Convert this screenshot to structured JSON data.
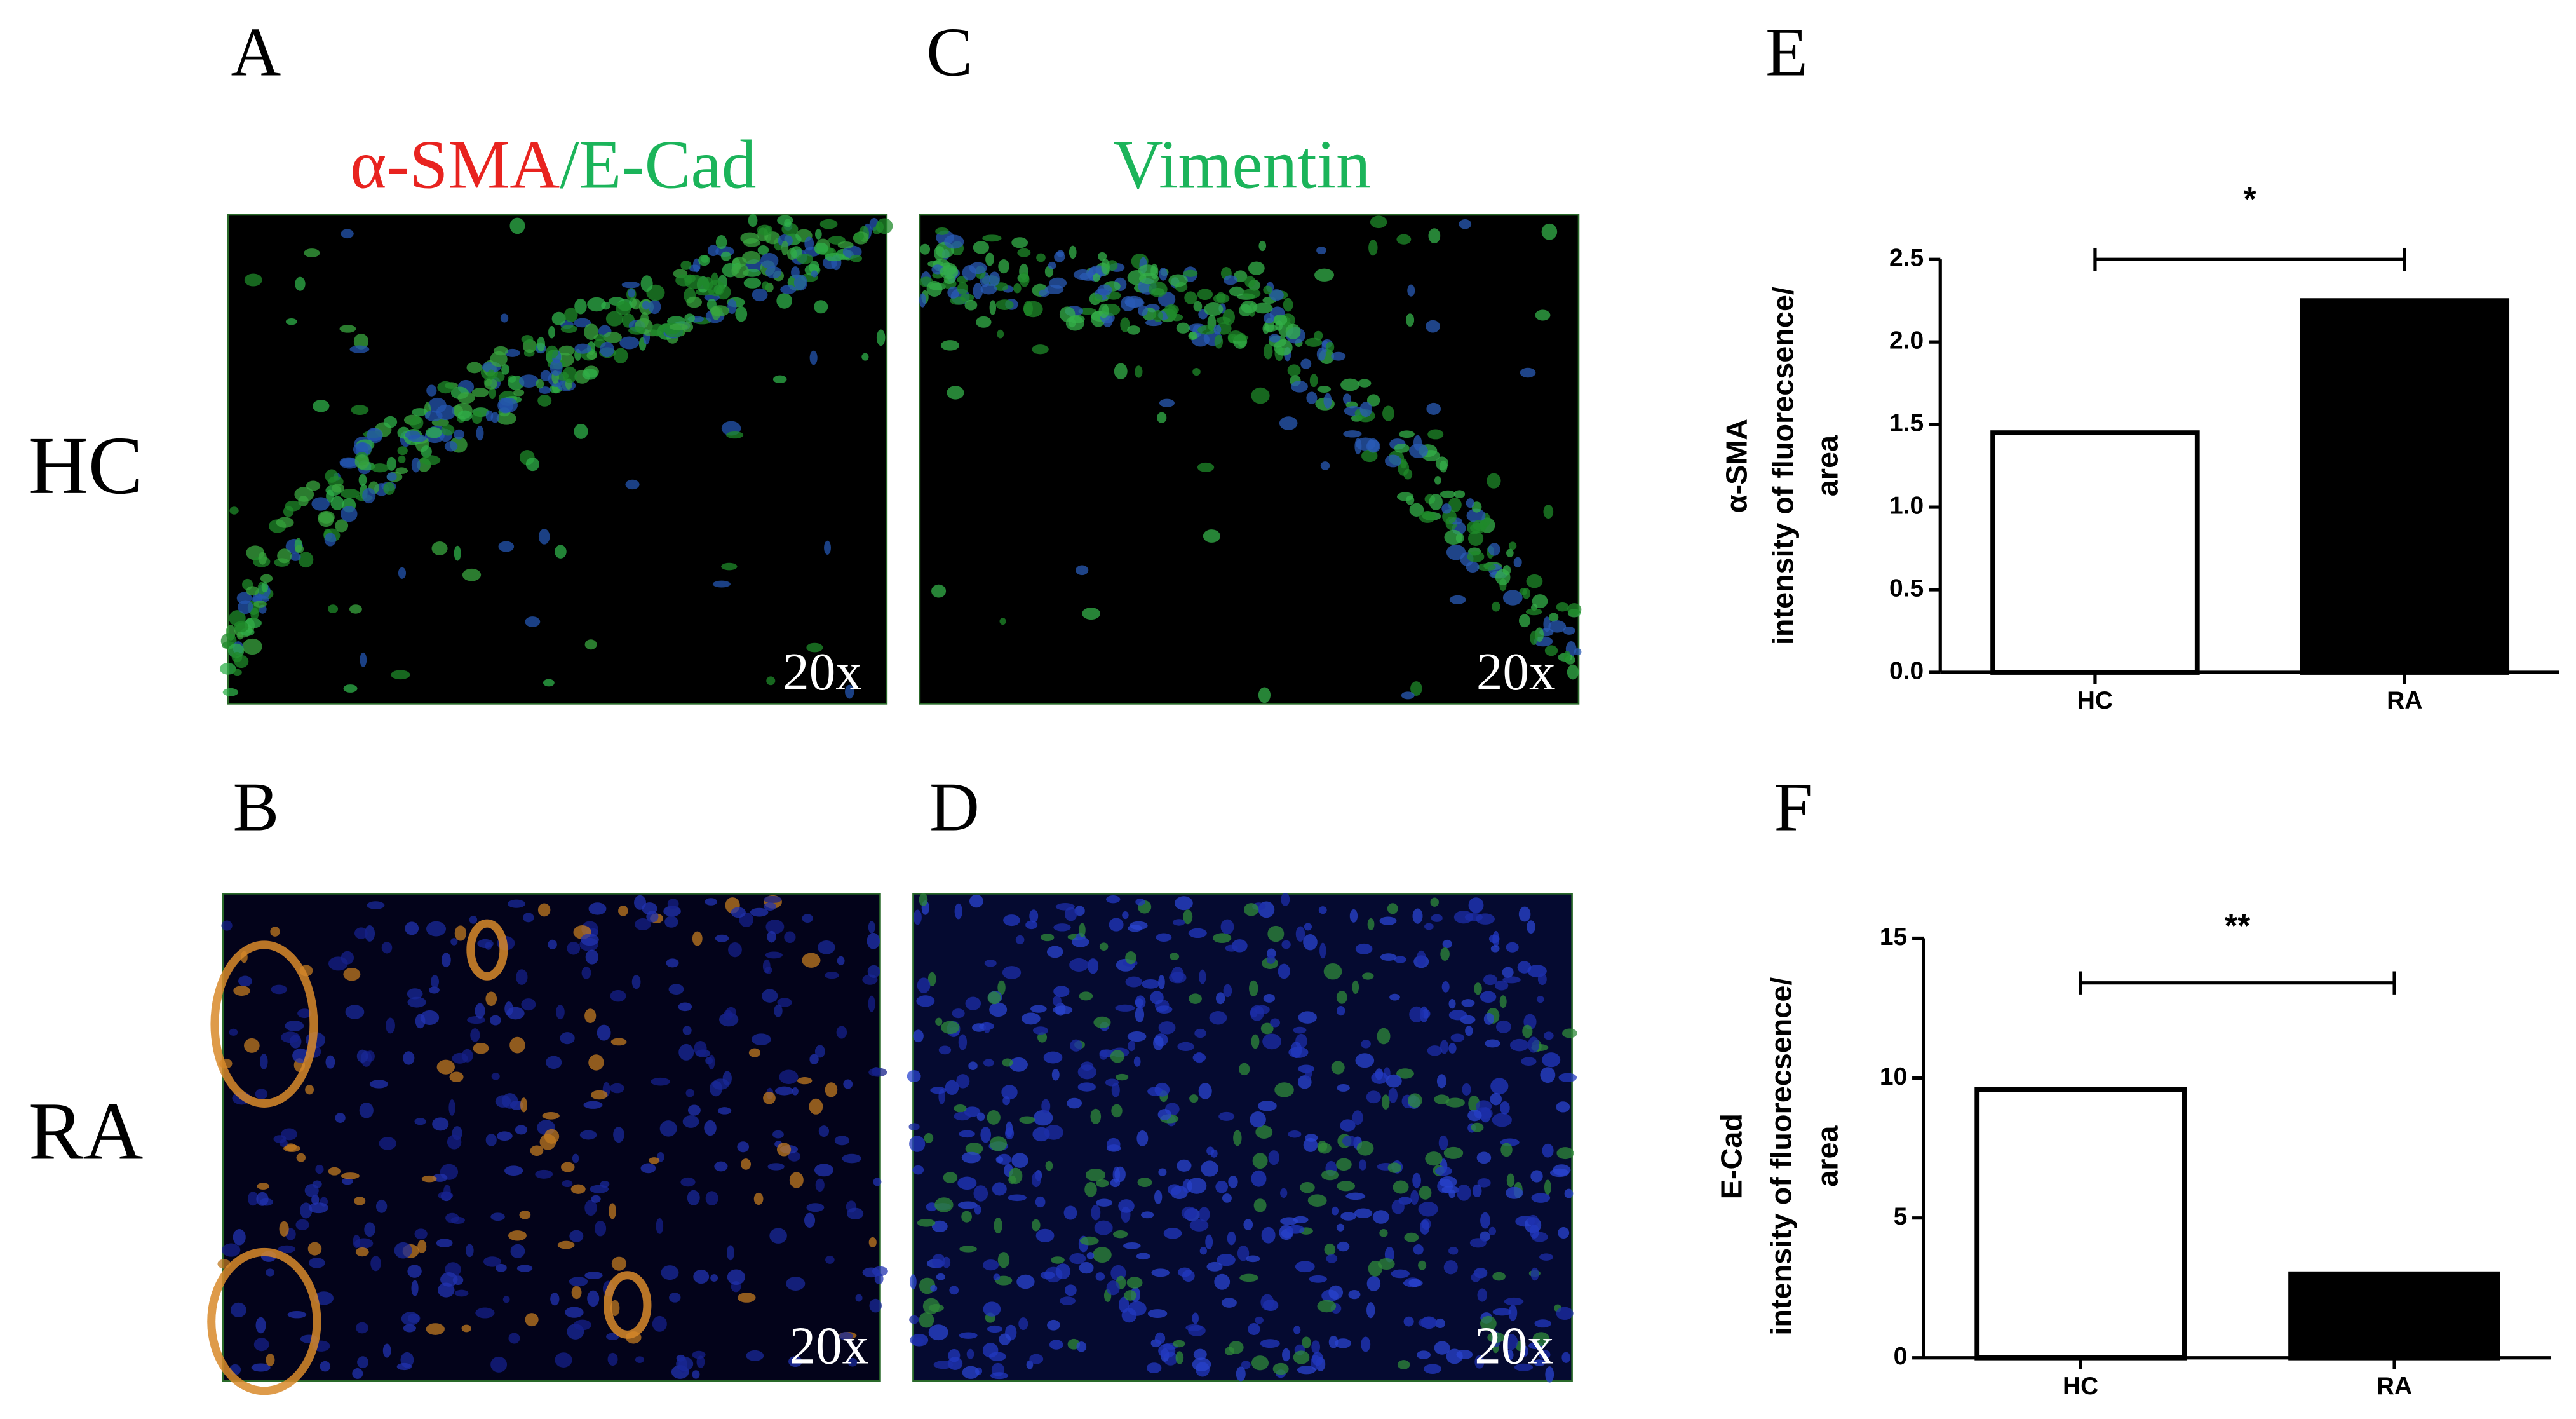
{
  "letters": [
    "A",
    "C",
    "E",
    "B",
    "D",
    "F"
  ],
  "rows": [
    "HC",
    "RA"
  ],
  "stain_a": [
    "α-SMA",
    "/",
    "E-Cad"
  ],
  "stain_c": "Vimentin",
  "magnification": [
    "20x",
    "20x",
    "20x",
    "20x"
  ],
  "chart_data": [
    {
      "type": "bar",
      "y_label": [
        "α-SMA",
        "intensity of fluorecsence/",
        "area"
      ],
      "categories": [
        "HC",
        "RA"
      ],
      "values": [
        1.45,
        2.25
      ],
      "colors": [
        "#ffffff",
        "#000000"
      ],
      "ylim": [
        0,
        2.5
      ],
      "yticks": [
        {
          "value": 0,
          "label": "0.0"
        },
        0.5,
        {
          "value": 1,
          "label": "1.0"
        },
        1.5,
        {
          "value": 2,
          "label": "2.0"
        },
        2.5
      ],
      "annotation": "*"
    },
    {
      "type": "bar",
      "y_label": [
        "E-Cad",
        "intensity of fluorecsence/",
        "area"
      ],
      "categories": [
        "HC",
        "RA"
      ],
      "values": [
        9.6,
        3.0
      ],
      "colors": [
        "#ffffff",
        "#000000"
      ],
      "ylim": [
        0,
        15
      ],
      "yticks": [
        0,
        5,
        10,
        15
      ],
      "annotation": "**"
    }
  ]
}
